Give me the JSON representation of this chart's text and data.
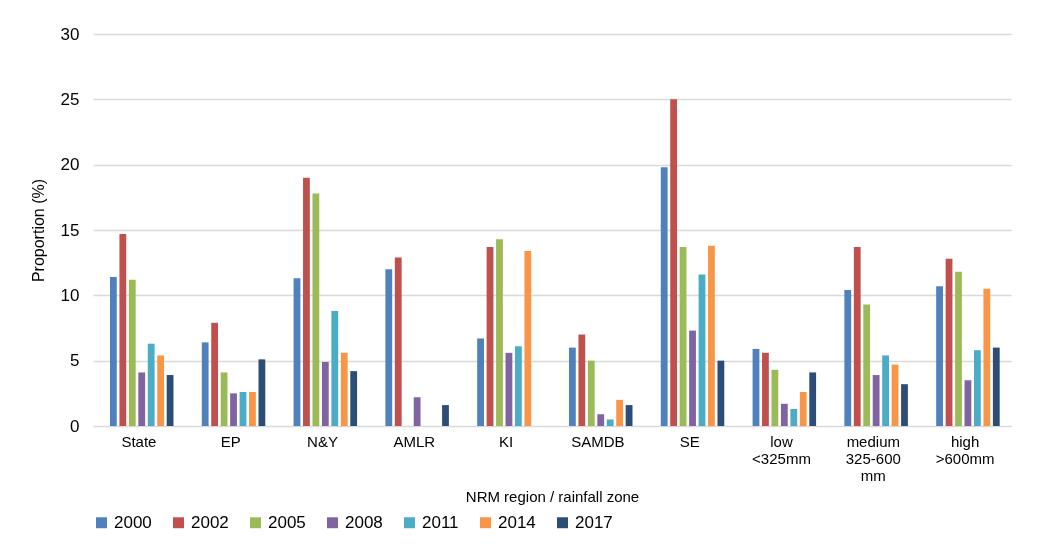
{
  "chart_data": {
    "type": "bar",
    "xlabel": "NRM region / rainfall zone",
    "ylabel": "Proportion (%)",
    "categories": [
      "State",
      "EP",
      "N&Y",
      "AMLR",
      "KI",
      "SAMDB",
      "SE",
      "low\n<325mm",
      "medium\n325-600\nmm",
      "high\n>600mm"
    ],
    "series": [
      {
        "name": "2000",
        "color": "#4f81bd",
        "values": [
          11.4,
          6.4,
          11.3,
          12.0,
          6.7,
          6.0,
          19.8,
          5.9,
          10.4,
          10.7
        ]
      },
      {
        "name": "2002",
        "color": "#c0504d",
        "values": [
          14.7,
          7.9,
          19.0,
          12.9,
          13.7,
          7.0,
          25.0,
          5.6,
          13.7,
          12.8
        ]
      },
      {
        "name": "2005",
        "color": "#9bbb59",
        "values": [
          11.2,
          4.1,
          17.8,
          null,
          14.3,
          5.0,
          13.7,
          4.3,
          9.3,
          11.8
        ]
      },
      {
        "name": "2008",
        "color": "#8064a2",
        "values": [
          4.1,
          2.5,
          4.9,
          2.2,
          5.6,
          0.9,
          7.3,
          1.7,
          3.9,
          3.5
        ]
      },
      {
        "name": "2011",
        "color": "#4bacc6",
        "values": [
          6.3,
          2.6,
          8.8,
          null,
          6.1,
          0.5,
          11.6,
          1.3,
          5.4,
          5.8
        ]
      },
      {
        "name": "2014",
        "color": "#f79646",
        "values": [
          5.4,
          2.6,
          5.6,
          null,
          13.4,
          2.0,
          13.8,
          2.6,
          4.7,
          10.5
        ]
      },
      {
        "name": "2017",
        "color": "#2c4d75",
        "values": [
          3.9,
          5.1,
          4.2,
          1.6,
          null,
          1.6,
          5.0,
          4.1,
          3.2,
          6.0
        ]
      }
    ],
    "ylim": [
      0,
      30
    ],
    "yticks": [
      0,
      5,
      10,
      15,
      20,
      25,
      30
    ],
    "grid": "y",
    "legend": "bottom"
  }
}
